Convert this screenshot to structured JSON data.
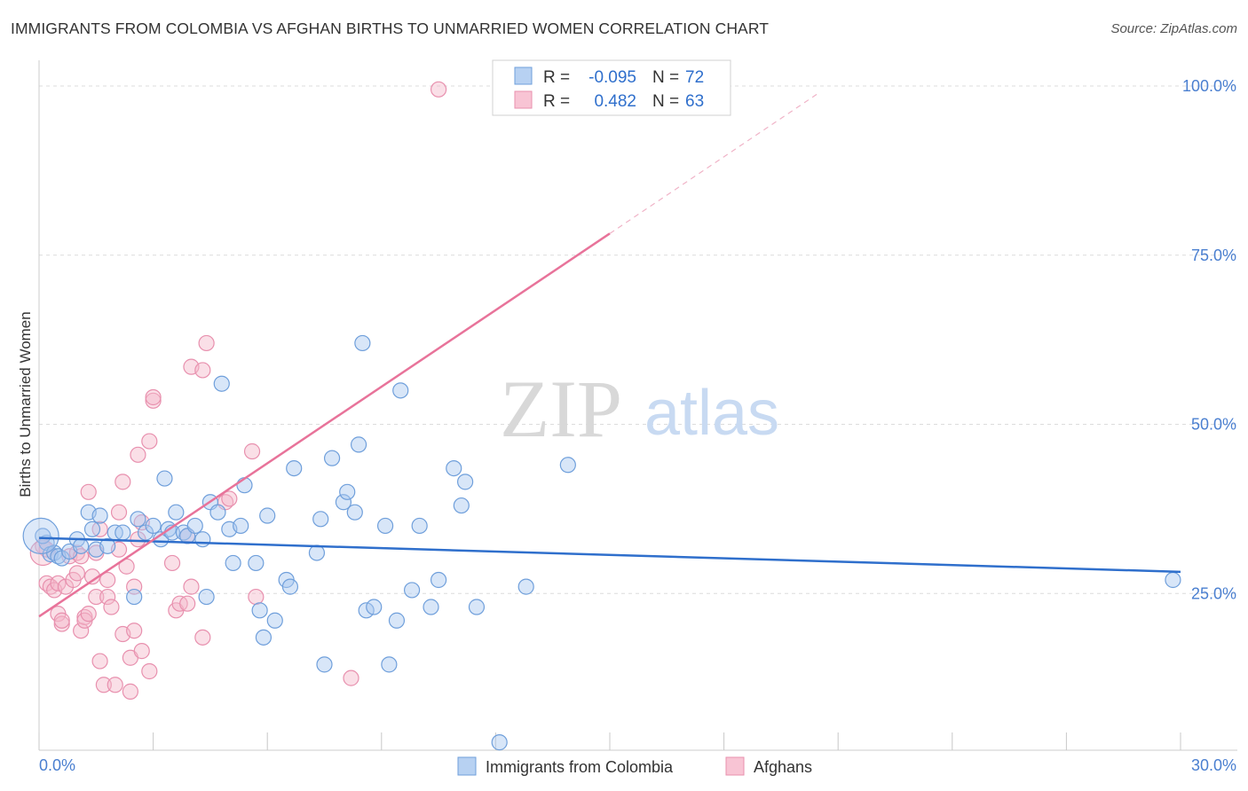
{
  "title": "IMMIGRANTS FROM COLOMBIA VS AFGHAN BIRTHS TO UNMARRIED WOMEN CORRELATION CHART",
  "source": "Source: ZipAtlas.com",
  "watermark": {
    "zip": "ZIP",
    "atlas": "atlas"
  },
  "colors": {
    "blue_fill": "#a9c8ef",
    "blue_stroke": "#6f9fdb",
    "blue_line": "#2f6fcc",
    "pink_fill": "#f5b8ca",
    "pink_stroke": "#e890ae",
    "pink_line": "#e8739a",
    "axis_label": "#4a7fd0",
    "grid": "#dcdcdc"
  },
  "legend": {
    "rows": [
      {
        "r_label": "R =",
        "r_value": "-0.095",
        "n_label": "N =",
        "n_value": "72"
      },
      {
        "r_label": "R =",
        "r_value": "0.482",
        "n_label": "N =",
        "n_value": "63"
      }
    ]
  },
  "chart_data": {
    "type": "scatter",
    "xlabel": "",
    "ylabel": "Births to Unmarried Women",
    "xlim": [
      0,
      30
    ],
    "ylim": [
      0,
      100
    ],
    "x_tick_labels": [
      "0.0%",
      "30.0%"
    ],
    "y_tick_labels": [
      "25.0%",
      "50.0%",
      "75.0%",
      "100.0%"
    ],
    "y_ticks": [
      25,
      50,
      75,
      100
    ],
    "grid": true,
    "legend_position": "top-center",
    "series": [
      {
        "name": "Immigrants from Colombia",
        "color": "#a9c8ef",
        "r": -0.095,
        "n": 72,
        "trend": {
          "x": [
            0,
            30
          ],
          "y": [
            33.2,
            28.2
          ]
        },
        "points": [
          [
            0.2,
            32.5
          ],
          [
            0.3,
            30.8
          ],
          [
            0.4,
            31.0
          ],
          [
            0.5,
            30.5
          ],
          [
            0.6,
            30.2
          ],
          [
            0.8,
            31.2
          ],
          [
            1.0,
            33.0
          ],
          [
            1.1,
            32.0
          ],
          [
            1.3,
            37.0
          ],
          [
            1.4,
            34.5
          ],
          [
            1.5,
            31.5
          ],
          [
            1.6,
            36.5
          ],
          [
            1.8,
            32.0
          ],
          [
            2.0,
            34.0
          ],
          [
            2.2,
            34.0
          ],
          [
            2.5,
            24.5
          ],
          [
            2.6,
            36.0
          ],
          [
            2.8,
            34.0
          ],
          [
            3.0,
            35.0
          ],
          [
            3.2,
            33.0
          ],
          [
            3.3,
            42.0
          ],
          [
            3.4,
            34.5
          ],
          [
            3.5,
            34.0
          ],
          [
            3.6,
            37.0
          ],
          [
            3.8,
            34.0
          ],
          [
            3.9,
            33.5
          ],
          [
            4.1,
            35.0
          ],
          [
            4.3,
            33.0
          ],
          [
            4.4,
            24.5
          ],
          [
            4.5,
            38.5
          ],
          [
            4.7,
            37.0
          ],
          [
            4.8,
            56.0
          ],
          [
            5.0,
            34.5
          ],
          [
            5.1,
            29.5
          ],
          [
            5.3,
            35.0
          ],
          [
            5.4,
            41.0
          ],
          [
            5.7,
            29.5
          ],
          [
            5.8,
            22.5
          ],
          [
            5.9,
            18.5
          ],
          [
            6.0,
            36.5
          ],
          [
            6.2,
            21.0
          ],
          [
            6.5,
            27.0
          ],
          [
            6.6,
            26.0
          ],
          [
            6.7,
            43.5
          ],
          [
            7.3,
            31.0
          ],
          [
            7.4,
            36.0
          ],
          [
            7.5,
            14.5
          ],
          [
            7.7,
            45.0
          ],
          [
            8.0,
            38.5
          ],
          [
            8.1,
            40.0
          ],
          [
            8.3,
            37.0
          ],
          [
            8.4,
            47.0
          ],
          [
            8.5,
            62.0
          ],
          [
            8.6,
            22.5
          ],
          [
            8.8,
            23.0
          ],
          [
            9.1,
            35.0
          ],
          [
            9.2,
            14.5
          ],
          [
            9.4,
            21.0
          ],
          [
            9.8,
            25.5
          ],
          [
            10.0,
            35.0
          ],
          [
            10.3,
            23.0
          ],
          [
            10.5,
            27.0
          ],
          [
            10.9,
            43.5
          ],
          [
            11.1,
            38.0
          ],
          [
            11.2,
            41.5
          ],
          [
            11.5,
            23.0
          ],
          [
            12.1,
            3.0
          ],
          [
            12.8,
            26.0
          ],
          [
            13.9,
            44.0
          ],
          [
            9.5,
            55.0
          ],
          [
            0.1,
            33.5
          ],
          [
            29.8,
            27.0
          ]
        ]
      },
      {
        "name": "Afghans",
        "color": "#f5b8ca",
        "r": 0.482,
        "n": 63,
        "trend": {
          "x": [
            0,
            15
          ],
          "y": [
            21.6,
            78.2
          ]
        },
        "trend_dashed": {
          "x": [
            15,
            20.5
          ],
          "y": [
            78.2,
            99.0
          ]
        },
        "points": [
          [
            0.1,
            32.0
          ],
          [
            0.2,
            31.5
          ],
          [
            0.2,
            26.5
          ],
          [
            0.3,
            26.0
          ],
          [
            0.4,
            25.5
          ],
          [
            0.5,
            26.5
          ],
          [
            0.5,
            22.0
          ],
          [
            0.6,
            20.5
          ],
          [
            0.6,
            21.0
          ],
          [
            0.7,
            26.0
          ],
          [
            0.8,
            30.5
          ],
          [
            0.9,
            27.0
          ],
          [
            1.0,
            31.0
          ],
          [
            1.0,
            28.0
          ],
          [
            1.1,
            19.5
          ],
          [
            1.2,
            21.5
          ],
          [
            1.2,
            21.0
          ],
          [
            1.3,
            22.0
          ],
          [
            1.3,
            40.0
          ],
          [
            1.4,
            27.5
          ],
          [
            1.5,
            31.0
          ],
          [
            1.5,
            24.5
          ],
          [
            1.6,
            34.5
          ],
          [
            1.6,
            15.0
          ],
          [
            1.7,
            11.5
          ],
          [
            1.8,
            24.5
          ],
          [
            1.8,
            27.0
          ],
          [
            1.9,
            23.0
          ],
          [
            2.0,
            11.5
          ],
          [
            2.1,
            31.5
          ],
          [
            2.1,
            37.0
          ],
          [
            2.2,
            41.5
          ],
          [
            2.2,
            19.0
          ],
          [
            2.3,
            29.0
          ],
          [
            2.4,
            15.5
          ],
          [
            2.4,
            10.5
          ],
          [
            2.5,
            19.5
          ],
          [
            2.5,
            26.0
          ],
          [
            2.6,
            33.0
          ],
          [
            2.6,
            45.5
          ],
          [
            2.7,
            35.5
          ],
          [
            2.7,
            16.5
          ],
          [
            2.9,
            13.5
          ],
          [
            2.9,
            47.5
          ],
          [
            3.0,
            53.5
          ],
          [
            3.0,
            54.0
          ],
          [
            3.5,
            29.5
          ],
          [
            3.6,
            22.5
          ],
          [
            3.7,
            23.5
          ],
          [
            3.9,
            23.5
          ],
          [
            3.9,
            33.5
          ],
          [
            4.0,
            58.5
          ],
          [
            4.0,
            26.0
          ],
          [
            4.3,
            58.0
          ],
          [
            4.3,
            18.5
          ],
          [
            4.4,
            62.0
          ],
          [
            4.9,
            38.5
          ],
          [
            5.0,
            39.0
          ],
          [
            5.6,
            46.0
          ],
          [
            5.7,
            24.5
          ],
          [
            8.2,
            12.5
          ],
          [
            10.5,
            99.5
          ],
          [
            1.1,
            30.5
          ]
        ]
      }
    ]
  }
}
